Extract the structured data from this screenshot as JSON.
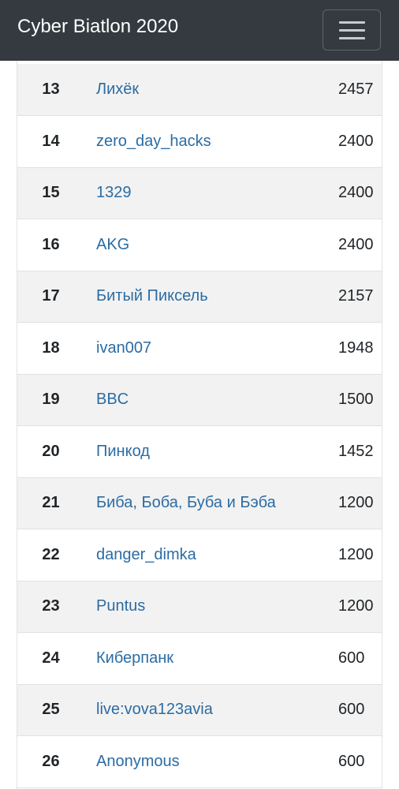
{
  "navbar": {
    "brand": "Cyber Biatlon 2020",
    "toggler_icon": "hamburger-menu-icon"
  },
  "scoreboard": {
    "rows": [
      {
        "rank": "13",
        "team": "Лихёк",
        "score": "2457"
      },
      {
        "rank": "14",
        "team": "zero_day_hacks",
        "score": "2400"
      },
      {
        "rank": "15",
        "team": "1329",
        "score": "2400"
      },
      {
        "rank": "16",
        "team": "AKG",
        "score": "2400"
      },
      {
        "rank": "17",
        "team": "Битый Пиксель",
        "score": "2157"
      },
      {
        "rank": "18",
        "team": "ivan007",
        "score": "1948"
      },
      {
        "rank": "19",
        "team": "BBC",
        "score": "1500"
      },
      {
        "rank": "20",
        "team": "Пинкод",
        "score": "1452"
      },
      {
        "rank": "21",
        "team": "Биба, Боба, Буба и Бэба",
        "score": "1200"
      },
      {
        "rank": "22",
        "team": "danger_dimka",
        "score": "1200"
      },
      {
        "rank": "23",
        "team": "Puntus",
        "score": "1200"
      },
      {
        "rank": "24",
        "team": "Киберпанк",
        "score": "600"
      },
      {
        "rank": "25",
        "team": "live:vova123avia",
        "score": "600"
      },
      {
        "rank": "26",
        "team": "Anonymous",
        "score": "600"
      }
    ]
  },
  "colors": {
    "navbar_bg": "#343a40",
    "link": "#2b6ca3",
    "stripe": "#f2f2f2"
  }
}
